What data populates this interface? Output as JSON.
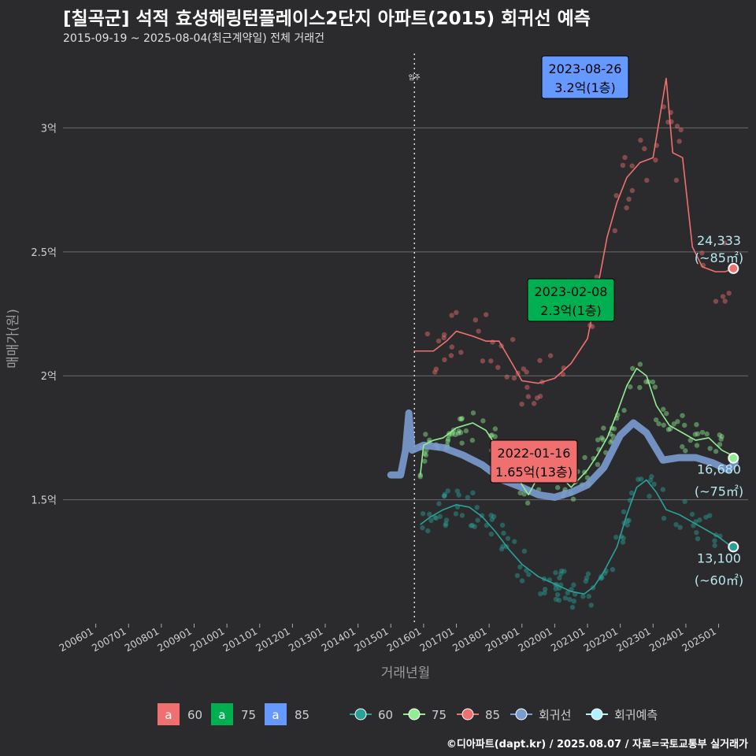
{
  "title": "[칠곡군] 석적 효성해링턴플레이스2단지 아파트(2015) 회귀선 예측",
  "subtitle": "2015-09-19 ~ 2025-08-04(최근계약일) 전체 거래건",
  "caption": "©디아파트(dapt.kr) / 2025.08.07 / 자료=국토교통부 실거래가",
  "colors": {
    "s60": "#2aa198",
    "s75": "#90ee90",
    "s85": "#f07070",
    "regression": "#7b9cd0",
    "forecast": "#b0f0ff",
    "label60": "#f07070",
    "label75": "#00b050",
    "label85": "#6699ff"
  },
  "chart_data": {
    "type": "scatter",
    "xlabel": "거래년월",
    "ylabel": "매매가(원)",
    "x_ticks": [
      "200601",
      "200701",
      "200801",
      "200901",
      "201001",
      "201101",
      "201201",
      "201301",
      "201401",
      "201501",
      "201601",
      "201701",
      "201801",
      "201901",
      "202001",
      "202101",
      "202201",
      "202301",
      "202401",
      "202501"
    ],
    "y_ticks": [
      "1.5억",
      "2억",
      "2.5억",
      "3억"
    ],
    "y_tick_values": [
      1.5,
      2.0,
      2.5,
      3.0
    ],
    "ylim": [
      1.0,
      3.3
    ],
    "xlim": [
      2005.0,
      2025.9
    ],
    "grid": true,
    "vline": {
      "x": 2015.72,
      "label": "입주"
    },
    "series": [
      {
        "name": "60",
        "line": [
          [
            2015.9,
            1.4
          ],
          [
            2016.2,
            1.43
          ],
          [
            2016.6,
            1.46
          ],
          [
            2017.0,
            1.48
          ],
          [
            2017.4,
            1.47
          ],
          [
            2017.8,
            1.43
          ],
          [
            2018.2,
            1.37
          ],
          [
            2018.6,
            1.3
          ],
          [
            2019.0,
            1.24
          ],
          [
            2019.5,
            1.19
          ],
          [
            2020.0,
            1.16
          ],
          [
            2020.5,
            1.13
          ],
          [
            2020.9,
            1.12
          ],
          [
            2021.2,
            1.15
          ],
          [
            2021.5,
            1.21
          ],
          [
            2021.9,
            1.31
          ],
          [
            2022.2,
            1.44
          ],
          [
            2022.5,
            1.55
          ],
          [
            2022.8,
            1.58
          ],
          [
            2023.1,
            1.53
          ],
          [
            2023.4,
            1.46
          ],
          [
            2023.8,
            1.44
          ],
          [
            2024.2,
            1.41
          ],
          [
            2024.6,
            1.38
          ],
          [
            2025.0,
            1.35
          ],
          [
            2025.3,
            1.32
          ]
        ],
        "end_value": 1.31,
        "end_label": "13,100",
        "end_area": "(~60㎡)"
      },
      {
        "name": "75",
        "line": [
          [
            2015.9,
            1.6
          ],
          [
            2016.0,
            1.72
          ],
          [
            2016.3,
            1.74
          ],
          [
            2016.6,
            1.75
          ],
          [
            2017.0,
            1.79
          ],
          [
            2017.5,
            1.81
          ],
          [
            2017.9,
            1.78
          ],
          [
            2018.2,
            1.72
          ],
          [
            2018.5,
            1.68
          ],
          [
            2018.8,
            1.62
          ],
          [
            2019.0,
            1.56
          ],
          [
            2019.2,
            1.52
          ],
          [
            2019.6,
            1.62
          ],
          [
            2020.0,
            1.62
          ],
          [
            2020.5,
            1.55
          ],
          [
            2021.0,
            1.62
          ],
          [
            2021.3,
            1.68
          ],
          [
            2021.6,
            1.75
          ],
          [
            2021.9,
            1.85
          ],
          [
            2022.2,
            1.96
          ],
          [
            2022.5,
            2.03
          ],
          [
            2022.8,
            2.0
          ],
          [
            2023.1,
            1.88
          ],
          [
            2023.5,
            1.8
          ],
          [
            2023.9,
            1.77
          ],
          [
            2024.3,
            1.74
          ],
          [
            2024.7,
            1.75
          ],
          [
            2025.1,
            1.7
          ],
          [
            2025.4,
            1.68
          ]
        ],
        "end_value": 1.668,
        "end_label": "16,680",
        "end_area": "(~75㎡)"
      },
      {
        "name": "85",
        "line": [
          [
            2015.7,
            2.1
          ],
          [
            2016.3,
            2.1
          ],
          [
            2016.7,
            2.14
          ],
          [
            2017.0,
            2.18
          ],
          [
            2017.5,
            2.16
          ],
          [
            2017.9,
            2.14
          ],
          [
            2018.3,
            2.14
          ],
          [
            2018.7,
            2.05
          ],
          [
            2019.0,
            1.98
          ],
          [
            2019.5,
            1.97
          ],
          [
            2020.0,
            1.99
          ],
          [
            2020.5,
            2.05
          ],
          [
            2021.0,
            2.15
          ],
          [
            2021.3,
            2.35
          ],
          [
            2021.6,
            2.56
          ],
          [
            2021.9,
            2.7
          ],
          [
            2022.2,
            2.8
          ],
          [
            2022.6,
            2.86
          ],
          [
            2023.0,
            2.88
          ],
          [
            2023.4,
            3.2
          ],
          [
            2023.6,
            2.9
          ],
          [
            2023.9,
            2.88
          ],
          [
            2024.2,
            2.52
          ],
          [
            2024.5,
            2.44
          ],
          [
            2024.9,
            2.42
          ],
          [
            2025.2,
            2.42
          ],
          [
            2025.4,
            2.43
          ]
        ],
        "end_value": 2.433,
        "end_label": "24,333",
        "end_area": "(~85㎡)"
      },
      {
        "name": "회귀선",
        "line": [
          [
            2015.0,
            1.6
          ],
          [
            2015.3,
            1.6
          ],
          [
            2015.45,
            1.7
          ],
          [
            2015.55,
            1.85
          ],
          [
            2015.65,
            1.7
          ],
          [
            2016.0,
            1.72
          ],
          [
            2016.6,
            1.71
          ],
          [
            2017.2,
            1.68
          ],
          [
            2017.8,
            1.64
          ],
          [
            2018.4,
            1.58
          ],
          [
            2019.0,
            1.55
          ],
          [
            2019.5,
            1.52
          ],
          [
            2020.0,
            1.51
          ],
          [
            2020.5,
            1.53
          ],
          [
            2021.0,
            1.56
          ],
          [
            2021.5,
            1.63
          ],
          [
            2022.0,
            1.76
          ],
          [
            2022.4,
            1.81
          ],
          [
            2022.8,
            1.77
          ],
          [
            2023.3,
            1.66
          ],
          [
            2023.8,
            1.67
          ],
          [
            2024.3,
            1.67
          ],
          [
            2024.8,
            1.65
          ],
          [
            2025.3,
            1.62
          ],
          [
            2025.5,
            1.65
          ]
        ]
      }
    ],
    "annotations": [
      {
        "date": "2023-08-26",
        "value": "3.2억(1층)",
        "series": "85"
      },
      {
        "date": "2023-02-08",
        "value": "2.3억(1층)",
        "series": "75"
      },
      {
        "date": "2022-01-16",
        "value": "1.65억(13층)",
        "series": "60"
      }
    ],
    "legend_label": {
      "title": "a",
      "items": [
        "60",
        "75",
        "85"
      ]
    },
    "legend_line": {
      "items": [
        "60",
        "75",
        "85",
        "회귀선",
        "회귀예측"
      ]
    },
    "legend_position": "bottom"
  }
}
